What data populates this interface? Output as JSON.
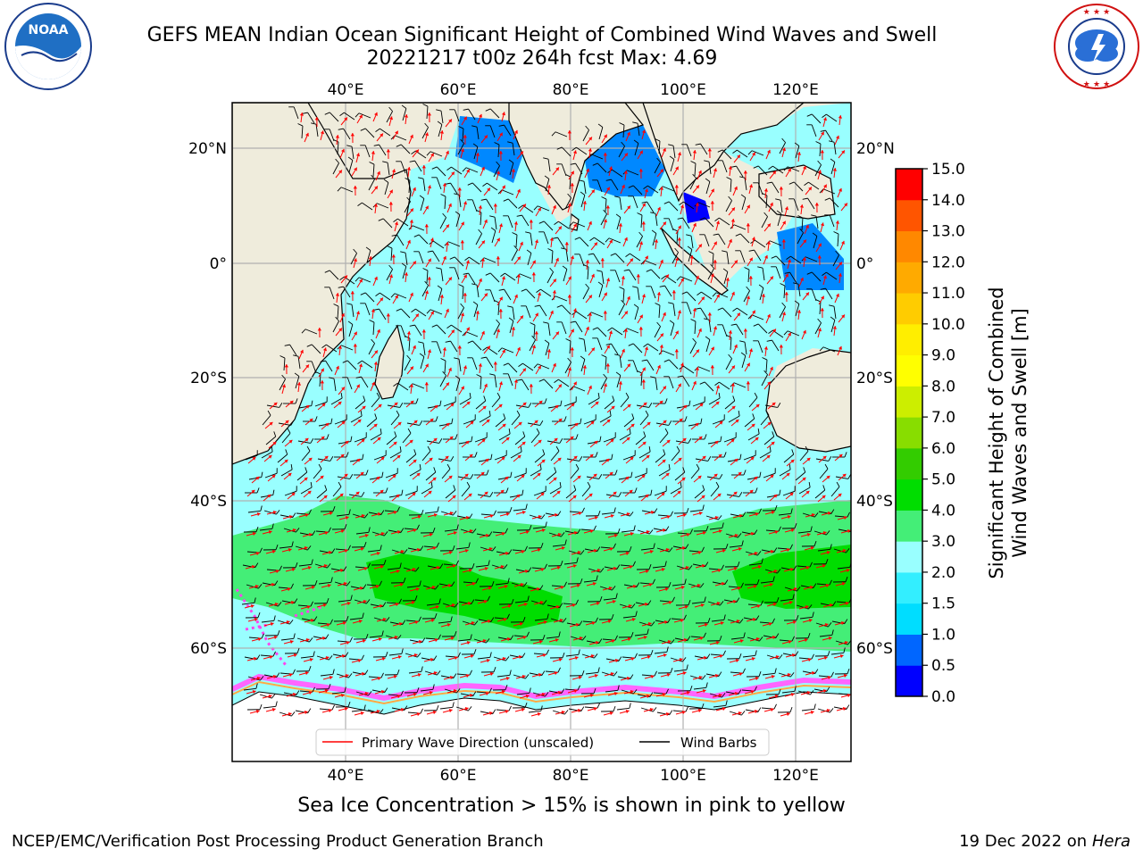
{
  "header": {
    "title_line1": "GEFS MEAN Indian Ocean Significant Height of Combined Wind Waves and Swell",
    "title_line2": "20221217 t00z 264h fcst   Max: 4.69"
  },
  "logos": {
    "noaa_text": "NOAA",
    "noaa_ring_text": "NATIONAL OCEANIC AND ATMOSPHERIC ADMINISTRATION · U.S. DEPARTMENT OF COMMERCE",
    "nws_ring_text": "NATIONAL WEATHER SERVICE"
  },
  "map": {
    "lon_labels": [
      "40°E",
      "60°E",
      "80°E",
      "100°E",
      "120°E"
    ],
    "lat_labels": [
      "20°N",
      "0°",
      "20°S",
      "40°S",
      "60°S"
    ],
    "legend": {
      "wave_label": "Primary Wave Direction (unscaled)",
      "wind_label": "Wind Barbs"
    },
    "colors": {
      "land": "#efecdc",
      "wave_arrow": "#ff0000",
      "barb": "#000000"
    }
  },
  "colorbar": {
    "label_line1": "Significant Height of Combined",
    "label_line2": "Wind Waves and Swell [m]",
    "ticks": [
      "0.0",
      "0.5",
      "1.0",
      "1.5",
      "2.0",
      "3.0",
      "4.0",
      "5.0",
      "6.0",
      "7.0",
      "8.0",
      "9.0",
      "10.0",
      "11.0",
      "12.0",
      "13.0",
      "14.0",
      "15.0"
    ],
    "colors": [
      "#0000ff",
      "#0066ff",
      "#00ddff",
      "#33eeff",
      "#99ffff",
      "#44ee77",
      "#00dd00",
      "#33cc00",
      "#88dd00",
      "#ccee00",
      "#ffff00",
      "#ffee00",
      "#ffcc00",
      "#ffaa00",
      "#ff8800",
      "#ff5500",
      "#ff0000"
    ]
  },
  "footer": {
    "note": "Sea Ice Concentration > 15% is shown in pink to yellow",
    "left": "NCEP/EMC/Verification Post Processing Product Generation Branch",
    "right_date": "19 Dec 2022 on",
    "right_machine": "Hera"
  }
}
